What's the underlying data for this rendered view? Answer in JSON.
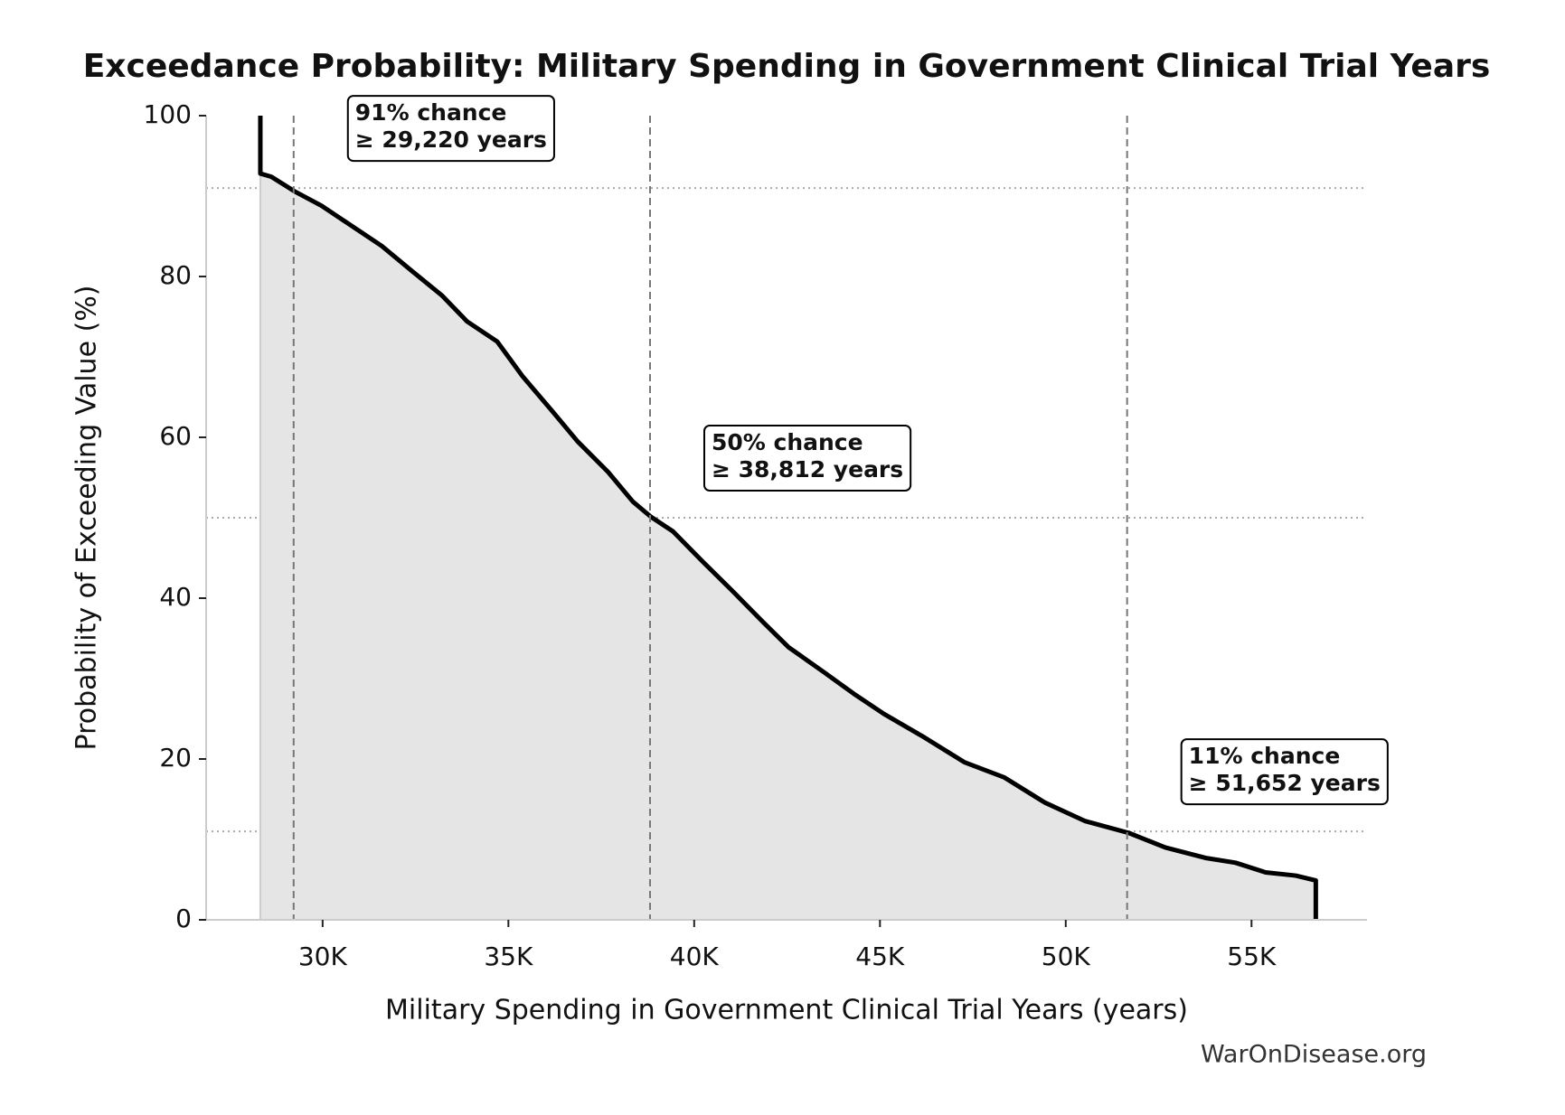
{
  "chart_data": {
    "type": "line",
    "title": "Exceedance Probability: Military Spending in Government Clinical Trial Years",
    "x_label": "Military Spending in Government Clinical Trial Years (years)",
    "y_label": "Probability of Exceeding Value (%)",
    "source": "WarOnDisease.org",
    "xlim": [
      26865,
      58108
    ],
    "ylim": [
      0,
      100
    ],
    "xticks": [
      {
        "value": 30000,
        "label": "30K"
      },
      {
        "value": 35000,
        "label": "35K"
      },
      {
        "value": 40000,
        "label": "40K"
      },
      {
        "value": 45000,
        "label": "45K"
      },
      {
        "value": 50000,
        "label": "50K"
      },
      {
        "value": 55000,
        "label": "55K"
      }
    ],
    "yticks": [
      0,
      20,
      40,
      60,
      80,
      100
    ],
    "fill_color": "#e5e5e5",
    "series": [
      {
        "color": "#000000",
        "x": [
          28324,
          28324,
          28620,
          29240,
          29970,
          30780,
          31590,
          32400,
          33220,
          33890,
          34700,
          35380,
          36190,
          36860,
          37680,
          38350,
          38840,
          39430,
          40240,
          41050,
          41860,
          42540,
          43490,
          44300,
          45110,
          46190,
          47270,
          48350,
          49430,
          50510,
          51700,
          52680,
          53760,
          54570,
          55380,
          56190,
          56730,
          56730
        ],
        "values": [
          100,
          92.8,
          92.4,
          90.6,
          88.8,
          86.3,
          83.8,
          80.7,
          77.6,
          74.4,
          71.9,
          67.6,
          63.2,
          59.5,
          55.7,
          52.0,
          50.1,
          48.3,
          44.5,
          40.8,
          37.0,
          33.9,
          30.8,
          28.1,
          25.6,
          22.7,
          19.6,
          17.7,
          14.6,
          12.3,
          10.8,
          9.0,
          7.7,
          7.1,
          5.9,
          5.5,
          4.9,
          0
        ]
      }
    ],
    "annotations": [
      {
        "x": 29220,
        "y": 91,
        "lines": [
          "91% chance",
          "≥ 29,220 years"
        ]
      },
      {
        "x": 38812,
        "y": 50,
        "lines": [
          "50% chance",
          "≥ 38,812 years"
        ]
      },
      {
        "x": 51652,
        "y": 11,
        "lines": [
          "11% chance",
          "≥ 51,652 years"
        ]
      }
    ]
  }
}
